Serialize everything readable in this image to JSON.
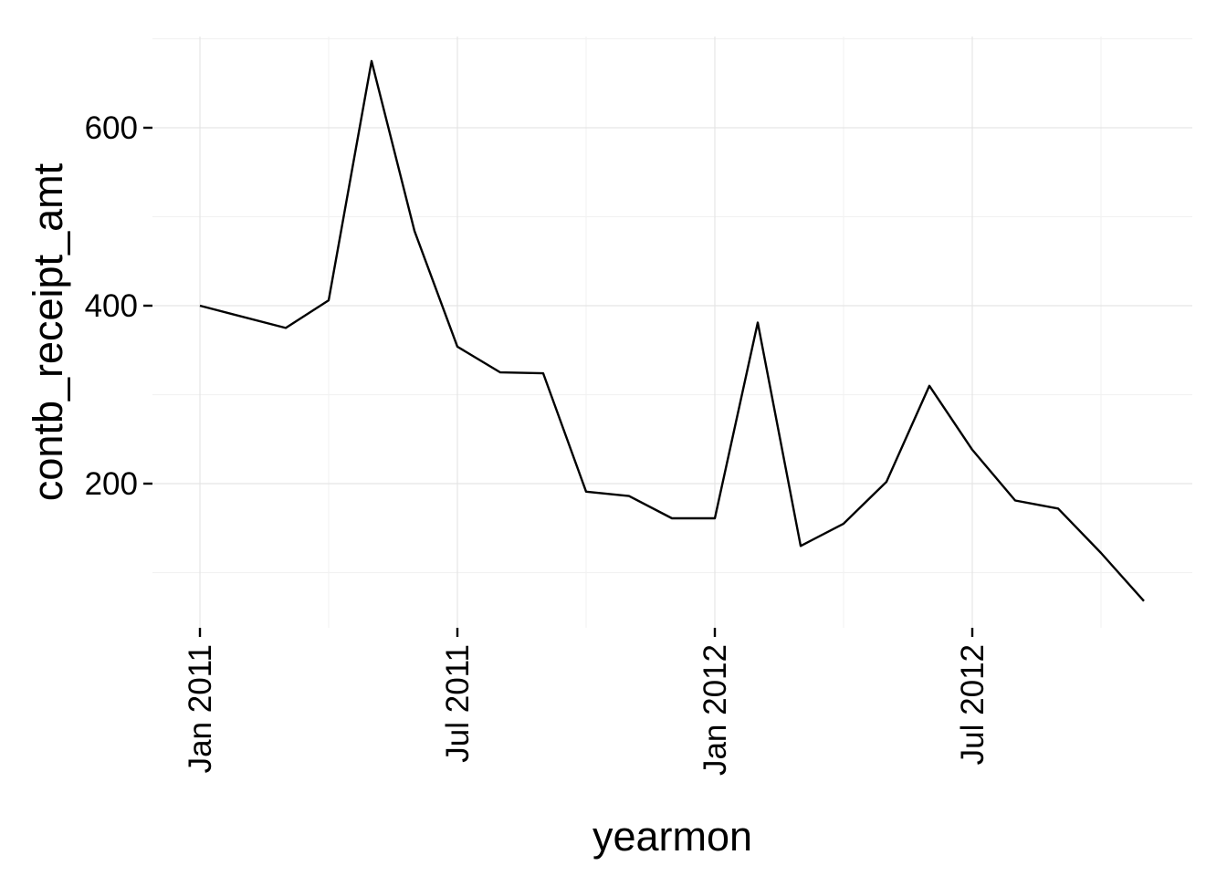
{
  "chart_data": {
    "type": "line",
    "title": "",
    "xlabel": "yearmon",
    "ylabel": "contb_receipt_amt",
    "x_tick_labels": [
      "Jan 2011",
      "Jul 2011",
      "Jan 2012",
      "Jul 2012"
    ],
    "y_tick_labels": [
      "200",
      "400",
      "600"
    ],
    "y_ticks": [
      200,
      400,
      600
    ],
    "ylim": [
      45,
      700
    ],
    "xlim": [
      "2010-12",
      "2012-12"
    ],
    "grid": true,
    "legend": "none",
    "series": [
      {
        "x": [
          "2011-01",
          "2011-03",
          "2011-04",
          "2011-05",
          "2011-06",
          "2011-07",
          "2011-08",
          "2011-09",
          "2011-10",
          "2011-11",
          "2011-12",
          "2012-01",
          "2012-02",
          "2012-03",
          "2012-04",
          "2012-05",
          "2012-06",
          "2012-07",
          "2012-08",
          "2012-09",
          "2012-10",
          "2012-11"
        ],
        "values": [
          400,
          375,
          406,
          675,
          484,
          354,
          325,
          324,
          191,
          186,
          161,
          161,
          381,
          130,
          155,
          202,
          310,
          238,
          181,
          172,
          122,
          68
        ]
      }
    ],
    "colors": {
      "line": "#000000",
      "grid_major": "#e5e5e5",
      "grid_minor": "#f2f2f2",
      "background": "#ffffff"
    }
  }
}
